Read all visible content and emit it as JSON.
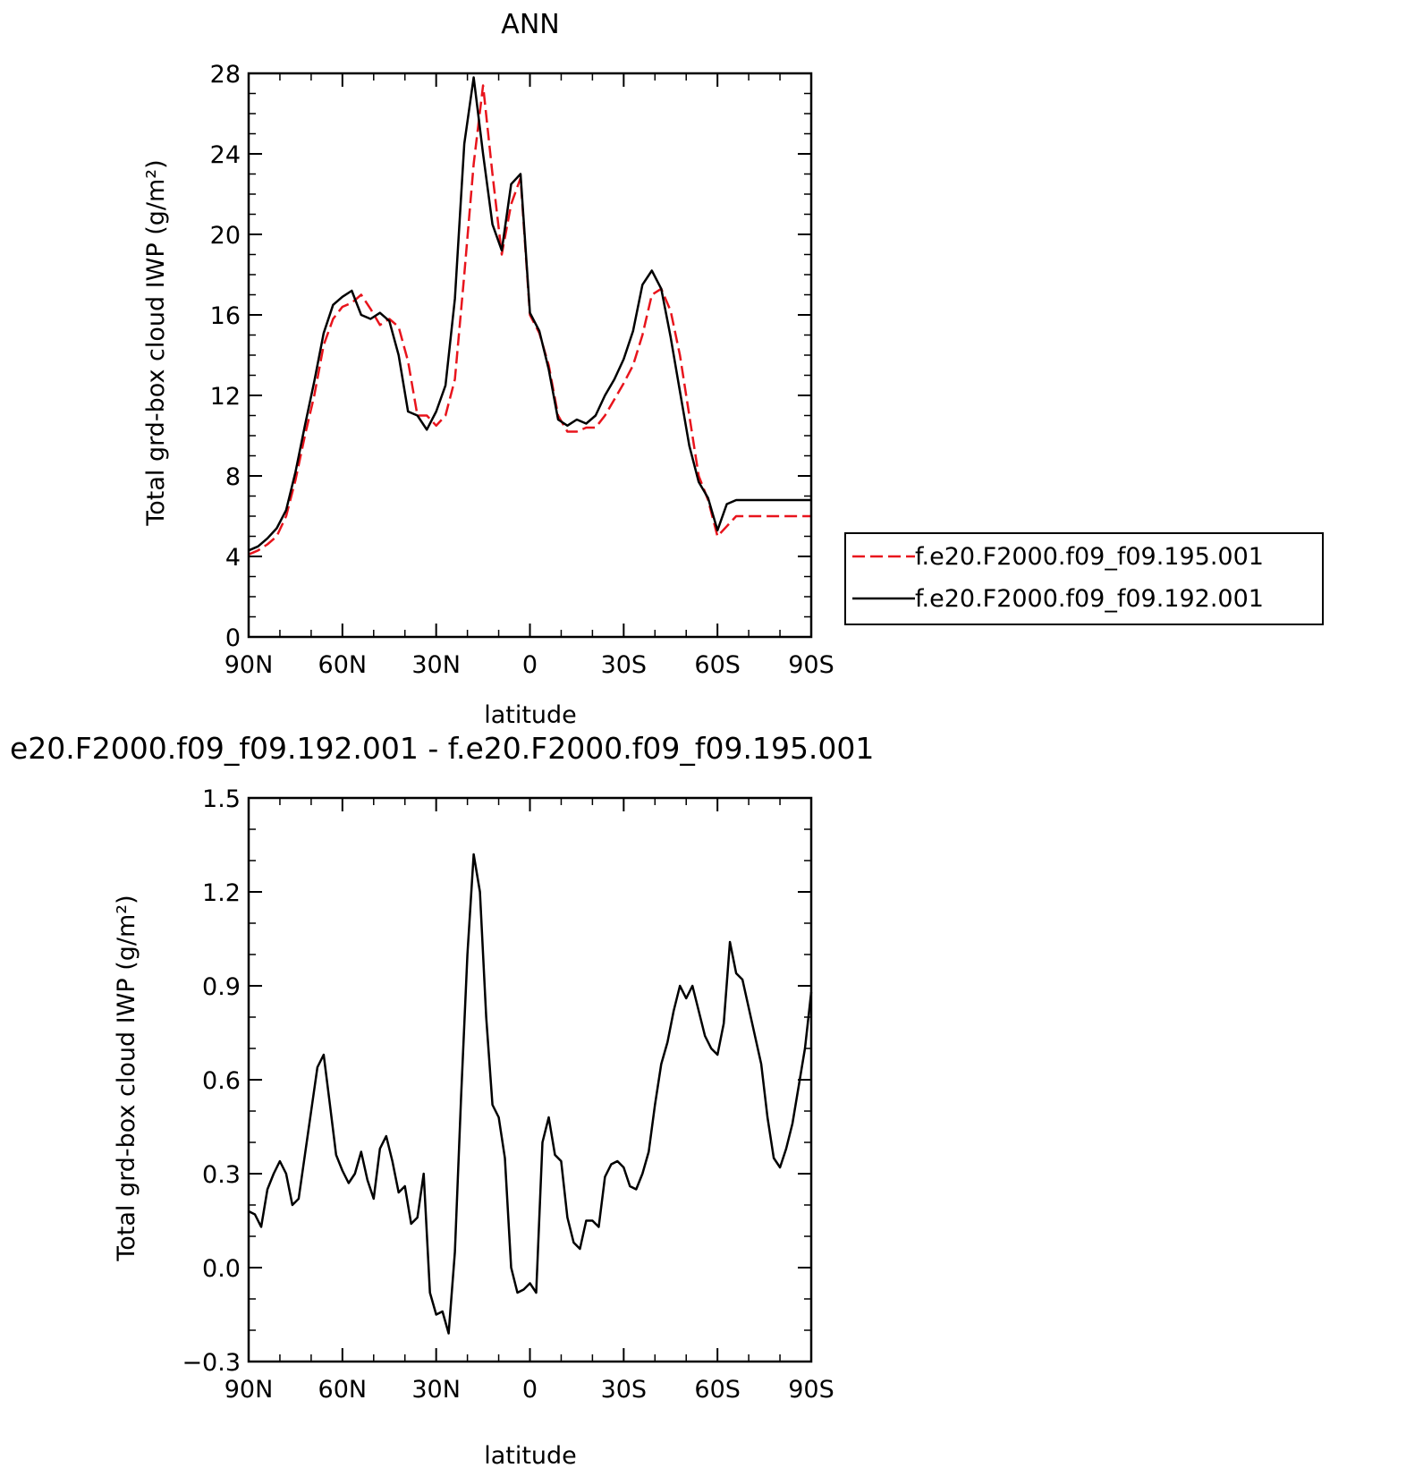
{
  "colors": {
    "diff_line": "#000000",
    "legend_box": "#000000"
  },
  "chart_data": [
    {
      "type": "line",
      "title": "ANN",
      "xlabel": "latitude",
      "ylabel": "Total grd-box cloud IWP (g/m²)",
      "xlim": [
        90,
        -90
      ],
      "ylim": [
        0,
        28
      ],
      "x_ticks": [
        90,
        60,
        30,
        0,
        -30,
        -60,
        -90
      ],
      "x_tick_labels": [
        "90N",
        "60N",
        "30N",
        "0",
        "30S",
        "60S",
        "90S"
      ],
      "y_ticks": [
        0,
        4,
        8,
        12,
        16,
        20,
        24,
        28
      ],
      "y_tick_labels": [
        "0",
        "4",
        "8",
        "12",
        "16",
        "20",
        "24",
        "28"
      ],
      "legend_position": "right",
      "series": [
        {
          "name": "f.e20.F2000.f09_f09.195.001",
          "color": "#e8141c",
          "style": "dashed",
          "x": [
            90,
            87,
            84,
            81,
            78,
            75,
            72,
            69,
            66,
            63,
            60,
            57,
            54,
            51,
            48,
            45,
            42,
            39,
            36,
            33,
            30,
            27,
            24,
            21,
            18,
            15,
            12,
            9,
            6,
            3,
            0,
            -3,
            -6,
            -9,
            -12,
            -15,
            -18,
            -21,
            -24,
            -27,
            -30,
            -33,
            -36,
            -39,
            -42,
            -45,
            -48,
            -51,
            -54,
            -57,
            -60,
            -63,
            -66,
            -69,
            -72,
            -75,
            -78,
            -81,
            -84,
            -87,
            -90
          ],
          "y": [
            4.1,
            4.3,
            4.6,
            5.0,
            6.0,
            7.8,
            10.0,
            12.0,
            14.5,
            15.8,
            16.4,
            16.6,
            17.0,
            16.3,
            15.5,
            15.8,
            15.4,
            13.7,
            11.0,
            11.0,
            10.5,
            11.0,
            12.8,
            18.0,
            23.5,
            27.4,
            23.0,
            19.0,
            21.5,
            22.8,
            16.0,
            15.1,
            13.5,
            11.0,
            10.2,
            10.2,
            10.4,
            10.4,
            11.0,
            11.8,
            12.6,
            13.5,
            15.0,
            17.0,
            17.3,
            16.2,
            14.0,
            11.0,
            8.0,
            6.8,
            5.0,
            5.5,
            6.0,
            6.0,
            6.0,
            6.0,
            6.0,
            6.0,
            6.0,
            6.0,
            6.0
          ]
        },
        {
          "name": "f.e20.F2000.f09_f09.192.001",
          "color": "#000000",
          "style": "solid",
          "x": [
            90,
            87,
            84,
            81,
            78,
            75,
            72,
            69,
            66,
            63,
            60,
            57,
            54,
            51,
            48,
            45,
            42,
            39,
            36,
            33,
            30,
            27,
            24,
            21,
            18,
            15,
            12,
            9,
            6,
            3,
            0,
            -3,
            -6,
            -9,
            -12,
            -15,
            -18,
            -21,
            -24,
            -27,
            -30,
            -33,
            -36,
            -39,
            -42,
            -45,
            -48,
            -51,
            -54,
            -57,
            -60,
            -63,
            -66,
            -69,
            -72,
            -75,
            -78,
            -81,
            -84,
            -87,
            -90
          ],
          "y": [
            4.3,
            4.5,
            4.9,
            5.4,
            6.3,
            8.2,
            10.5,
            12.7,
            15.1,
            16.5,
            16.9,
            17.2,
            16.0,
            15.8,
            16.1,
            15.7,
            14.0,
            11.2,
            11.0,
            10.3,
            11.2,
            12.5,
            16.8,
            24.5,
            27.8,
            24.0,
            20.5,
            19.2,
            22.5,
            23.0,
            16.1,
            15.2,
            13.3,
            10.8,
            10.5,
            10.8,
            10.6,
            11.0,
            12.0,
            12.8,
            13.8,
            15.2,
            17.5,
            18.2,
            17.3,
            14.9,
            12.2,
            9.5,
            7.7,
            6.9,
            5.3,
            6.6,
            6.8,
            6.8,
            6.8,
            6.8,
            6.8,
            6.8,
            6.8,
            6.8,
            6.8
          ]
        }
      ]
    },
    {
      "type": "line",
      "title": "e20.F2000.f09_f09.192.001 - f.e20.F2000.f09_f09.195.001",
      "xlabel": "latitude",
      "ylabel": "Total grd-box cloud IWP (g/m²)",
      "xlim": [
        90,
        -90
      ],
      "ylim": [
        -0.3,
        1.5
      ],
      "x_ticks": [
        90,
        60,
        30,
        0,
        -30,
        -60,
        -90
      ],
      "x_tick_labels": [
        "90N",
        "60N",
        "30N",
        "0",
        "30S",
        "60S",
        "90S"
      ],
      "y_ticks": [
        -0.3,
        0.0,
        0.3,
        0.6,
        0.9,
        1.2,
        1.5
      ],
      "y_tick_labels": [
        "−0.3",
        "0.0",
        "0.3",
        "0.6",
        "0.9",
        "1.2",
        "1.5"
      ],
      "series": [
        {
          "color": "#000000",
          "style": "solid",
          "x": [
            90,
            88,
            86,
            84,
            82,
            80,
            78,
            76,
            74,
            72,
            70,
            68,
            66,
            64,
            62,
            60,
            58,
            56,
            54,
            52,
            50,
            48,
            46,
            44,
            42,
            40,
            38,
            36,
            34,
            32,
            30,
            28,
            26,
            24,
            22,
            20,
            18,
            16,
            14,
            12,
            10,
            8,
            6,
            4,
            2,
            0,
            -2,
            -4,
            -6,
            -8,
            -10,
            -12,
            -14,
            -16,
            -18,
            -20,
            -22,
            -24,
            -26,
            -28,
            -30,
            -32,
            -34,
            -36,
            -38,
            -40,
            -42,
            -44,
            -46,
            -48,
            -50,
            -52,
            -54,
            -56,
            -58,
            -60,
            -62,
            -64,
            -66,
            -68,
            -70,
            -72,
            -74,
            -76,
            -78,
            -80,
            -82,
            -84,
            -86,
            -88,
            -90
          ],
          "y": [
            0.18,
            0.17,
            0.13,
            0.25,
            0.3,
            0.34,
            0.3,
            0.2,
            0.22,
            0.36,
            0.5,
            0.64,
            0.68,
            0.52,
            0.36,
            0.31,
            0.27,
            0.3,
            0.37,
            0.28,
            0.22,
            0.38,
            0.42,
            0.34,
            0.24,
            0.26,
            0.14,
            0.16,
            0.3,
            -0.08,
            -0.15,
            -0.14,
            -0.21,
            0.05,
            0.55,
            1.0,
            1.32,
            1.2,
            0.8,
            0.52,
            0.48,
            0.35,
            0.0,
            -0.08,
            -0.07,
            -0.05,
            -0.08,
            0.4,
            0.48,
            0.36,
            0.34,
            0.16,
            0.08,
            0.06,
            0.15,
            0.15,
            0.13,
            0.29,
            0.33,
            0.34,
            0.32,
            0.26,
            0.25,
            0.3,
            0.37,
            0.52,
            0.65,
            0.72,
            0.82,
            0.9,
            0.86,
            0.9,
            0.82,
            0.74,
            0.7,
            0.68,
            0.78,
            1.04,
            0.94,
            0.92,
            0.83,
            0.74,
            0.65,
            0.48,
            0.35,
            0.32,
            0.38,
            0.46,
            0.58,
            0.7,
            0.88
          ]
        }
      ]
    }
  ]
}
